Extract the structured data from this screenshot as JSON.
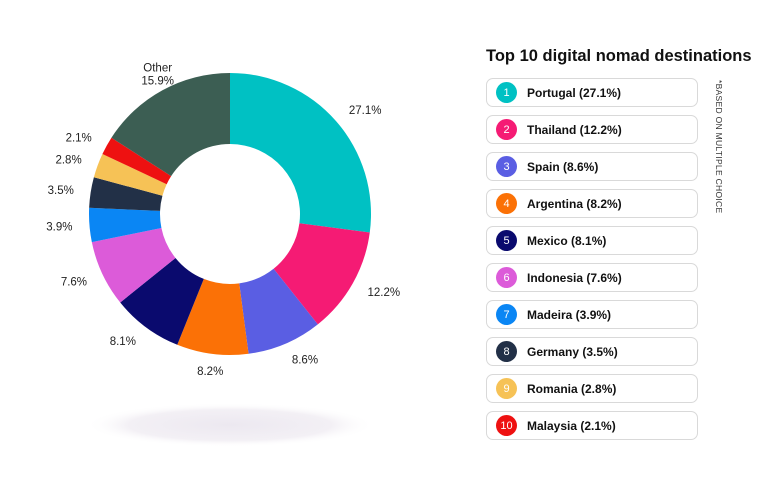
{
  "chart_data": {
    "type": "pie",
    "variant": "donut",
    "title": "Top 10 digital nomad destinations",
    "footnote": "*BASED ON MULTIPLE CHOICE",
    "legend_placement": "right",
    "slices": [
      {
        "rank": "1",
        "name": "Portugal",
        "value": 27.1,
        "value_label": "27.1%",
        "legend": "Portugal (27.1%)",
        "color": "#00c1c3"
      },
      {
        "rank": "2",
        "name": "Thailand",
        "value": 12.2,
        "value_label": "12.2%",
        "legend": "Thailand (12.2%)",
        "color": "#f51b74"
      },
      {
        "rank": "3",
        "name": "Spain",
        "value": 8.6,
        "value_label": "8.6%",
        "legend": "Spain (8.6%)",
        "color": "#5a5ee3"
      },
      {
        "rank": "4",
        "name": "Argentina",
        "value": 8.2,
        "value_label": "8.2%",
        "legend": "Argentina (8.2%)",
        "color": "#fb7106"
      },
      {
        "rank": "5",
        "name": "Mexico",
        "value": 8.1,
        "value_label": "8.1%",
        "legend": "Mexico (8.1%)",
        "color": "#0a0a6e"
      },
      {
        "rank": "6",
        "name": "Indonesia",
        "value": 7.6,
        "value_label": "7.6%",
        "legend": "Indonesia (7.6%)",
        "color": "#dc5bd9"
      },
      {
        "rank": "7",
        "name": "Madeira",
        "value": 3.9,
        "value_label": "3.9%",
        "legend": "Madeira (3.9%)",
        "color": "#0a86f4"
      },
      {
        "rank": "8",
        "name": "Germany",
        "value": 3.5,
        "value_label": "3.5%",
        "legend": "Germany (3.5%)",
        "color": "#223047"
      },
      {
        "rank": "9",
        "name": "Romania",
        "value": 2.8,
        "value_label": "2.8%",
        "legend": "Romania (2.8%)",
        "color": "#f6c256"
      },
      {
        "rank": "10",
        "name": "Malaysia",
        "value": 2.1,
        "value_label": "2.1%",
        "legend": "Malaysia (2.1%)",
        "color": "#ee1111"
      }
    ],
    "other": {
      "name": "Other",
      "value": 15.9,
      "value_label": "15.9%",
      "color": "#3c5e53"
    }
  }
}
